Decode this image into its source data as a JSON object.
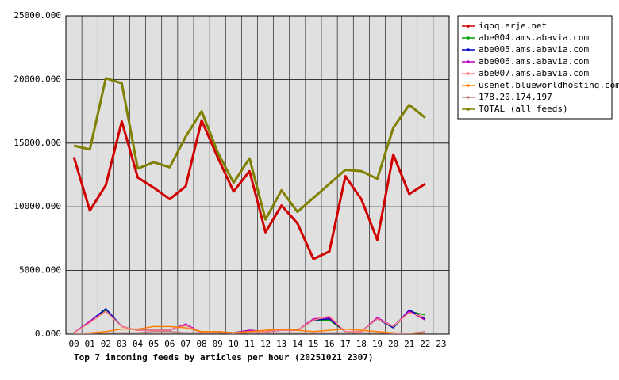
{
  "chart_data": {
    "type": "line",
    "title": "Top 7 incoming feeds by articles per hour (20251021 2307)",
    "categories": [
      "00",
      "01",
      "02",
      "03",
      "04",
      "05",
      "06",
      "07",
      "08",
      "09",
      "10",
      "11",
      "12",
      "13",
      "14",
      "15",
      "16",
      "17",
      "18",
      "19",
      "20",
      "21",
      "22",
      "23"
    ],
    "ylim": [
      0,
      25000
    ],
    "yticks": [
      {
        "value": 0,
        "label": "0.000"
      },
      {
        "value": 5000,
        "label": "5000.000"
      },
      {
        "value": 10000,
        "label": "10000.000"
      },
      {
        "value": 15000,
        "label": "15000.000"
      },
      {
        "value": 20000,
        "label": "20000.000"
      },
      {
        "value": 25000,
        "label": "25000.000"
      }
    ],
    "grid": true,
    "legend": "right",
    "series": [
      {
        "name": "iqoq.erje.net",
        "color": "#d00000",
        "values": [
          13900,
          9700,
          11700,
          16700,
          12300,
          11500,
          10600,
          11600,
          16800,
          13900,
          11200,
          12800,
          8000,
          10100,
          8700,
          5900,
          6500,
          12400,
          10600,
          7400,
          14100,
          11000,
          11800,
          null
        ]
      },
      {
        "name": "abe004.ams.abavia.com",
        "color": "#00a000",
        "values": [
          100,
          1000,
          1900,
          600,
          300,
          300,
          300,
          700,
          100,
          200,
          100,
          300,
          200,
          300,
          300,
          1100,
          1100,
          200,
          200,
          1200,
          500,
          1800,
          1500,
          null
        ]
      },
      {
        "name": "abe005.ams.abavia.com",
        "color": "#0000c0",
        "values": [
          100,
          1000,
          2000,
          600,
          300,
          300,
          300,
          700,
          100,
          200,
          100,
          300,
          200,
          300,
          300,
          1100,
          1200,
          200,
          200,
          1200,
          500,
          1900,
          1200,
          null
        ]
      },
      {
        "name": "abe006.ams.abavia.com",
        "color": "#c000c0",
        "values": [
          100,
          1000,
          1800,
          600,
          300,
          300,
          300,
          800,
          100,
          200,
          100,
          300,
          200,
          300,
          300,
          1200,
          1300,
          200,
          200,
          1300,
          600,
          1800,
          1100,
          null
        ]
      },
      {
        "name": "abe007.ams.abavia.com",
        "color": "#ff8080",
        "values": [
          100,
          900,
          1800,
          600,
          300,
          300,
          300,
          700,
          100,
          200,
          100,
          200,
          200,
          300,
          300,
          1100,
          1400,
          200,
          200,
          1200,
          600,
          1700,
          1300,
          null
        ]
      },
      {
        "name": "usenet.blueworldhosting.com",
        "color": "#ff8000",
        "values": [
          50,
          100,
          200,
          400,
          400,
          600,
          600,
          500,
          200,
          200,
          100,
          200,
          300,
          400,
          300,
          200,
          300,
          400,
          300,
          200,
          100,
          50,
          100,
          null
        ]
      },
      {
        "name": "178.20.174.197",
        "color": "#c08080",
        "values": [
          50,
          50,
          100,
          100,
          100,
          200,
          200,
          100,
          100,
          100,
          50,
          100,
          100,
          100,
          100,
          100,
          100,
          100,
          100,
          100,
          50,
          50,
          200,
          null
        ]
      },
      {
        "name": "TOTAL (all feeds)",
        "color": "#808000",
        "values": [
          14800,
          14500,
          20100,
          19700,
          13000,
          13500,
          13100,
          15500,
          17500,
          14300,
          11900,
          13800,
          9000,
          11300,
          9600,
          10700,
          11800,
          12900,
          12800,
          12200,
          16200,
          18000,
          17000,
          null
        ]
      }
    ]
  }
}
